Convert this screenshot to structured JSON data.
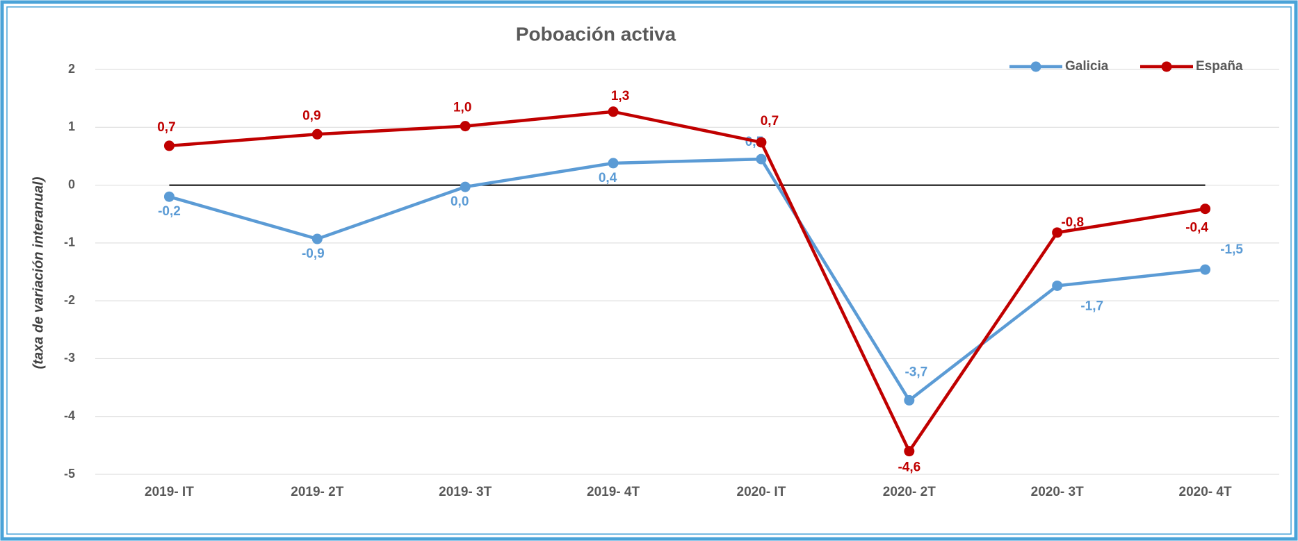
{
  "chart_data": {
    "type": "line",
    "title": "Poboación activa",
    "y_label": "(taxa de variación interanual)",
    "categories": [
      "2019- IT",
      "2019- 2T",
      "2019- 3T",
      "2019- 4T",
      "2020- IT",
      "2020- 2T",
      "2020- 3T",
      "2020- 4T"
    ],
    "series": [
      {
        "name": "Galicia",
        "color": "#5b9bd5",
        "values": [
          -0.2,
          -0.93,
          -0.03,
          0.38,
          0.45,
          -3.72,
          -1.74,
          -1.46
        ],
        "value_labels": [
          "-0,2",
          "-0,9",
          "0,0",
          "0,4",
          "0,5",
          "-3,7",
          "-1,7",
          "-1,5"
        ]
      },
      {
        "name": "España",
        "color": "#c00000",
        "values": [
          0.68,
          0.88,
          1.02,
          1.27,
          0.74,
          -4.6,
          -0.82,
          -0.41
        ],
        "value_labels": [
          "0,7",
          "0,9",
          "1,0",
          "1,3",
          "0,7",
          "-4,6",
          "-0,8",
          "-0,4"
        ]
      }
    ],
    "ylim": [
      -5,
      2
    ],
    "yticks": [
      -5,
      -4,
      -3,
      -2,
      -1,
      0,
      1,
      2
    ],
    "grid": true,
    "legend": "top-right"
  }
}
